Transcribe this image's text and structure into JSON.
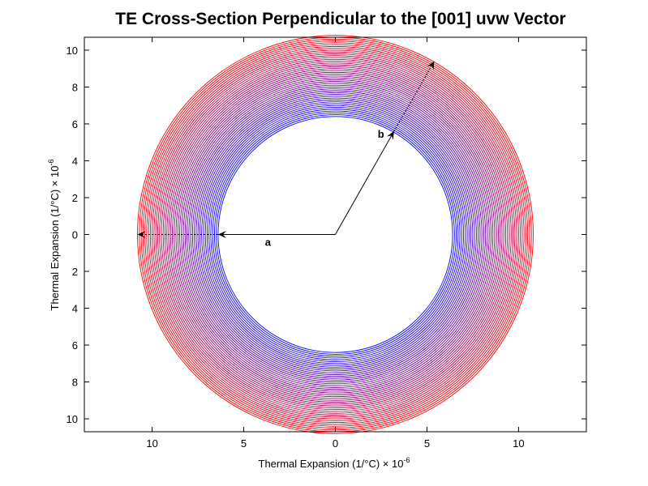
{
  "chart_data": {
    "type": "line",
    "title": "TE Cross-Section Perpendicular to the [001] uvw Vector",
    "xlabel": "Thermal Expansion (1/°C) × 10",
    "xlabel_exponent": "-6",
    "ylabel": "Thermal Expansion (1/°C) × 10",
    "ylabel_exponent": "-6",
    "xlim": [
      -13.7,
      13.7
    ],
    "ylim": [
      -10.7,
      10.7
    ],
    "x_ticks": [
      -10,
      -5,
      0,
      5,
      10
    ],
    "x_tick_labels": [
      "10",
      "5",
      "0",
      "5",
      "10"
    ],
    "y_ticks": [
      10,
      8,
      6,
      4,
      2,
      0,
      -2,
      -4,
      -6,
      -8,
      -10
    ],
    "y_tick_labels": [
      "10",
      "8",
      "6",
      "4",
      "2",
      "0",
      "2",
      "4",
      "6",
      "8",
      "10"
    ],
    "grid": false,
    "rings": {
      "inner_radius": 6.4,
      "outer_radius": 10.8,
      "count": 45,
      "inner_color": "#0000ff",
      "outer_color": "#ff0000"
    },
    "arrows": [
      {
        "label": "a",
        "from": [
          0,
          0
        ],
        "to": [
          -6.4,
          0
        ],
        "extended_to": [
          -10.8,
          0
        ]
      },
      {
        "label": "b",
        "from": [
          0,
          0
        ],
        "to": [
          3.2,
          5.6
        ],
        "extended_to": [
          5.4,
          9.4
        ]
      }
    ]
  }
}
